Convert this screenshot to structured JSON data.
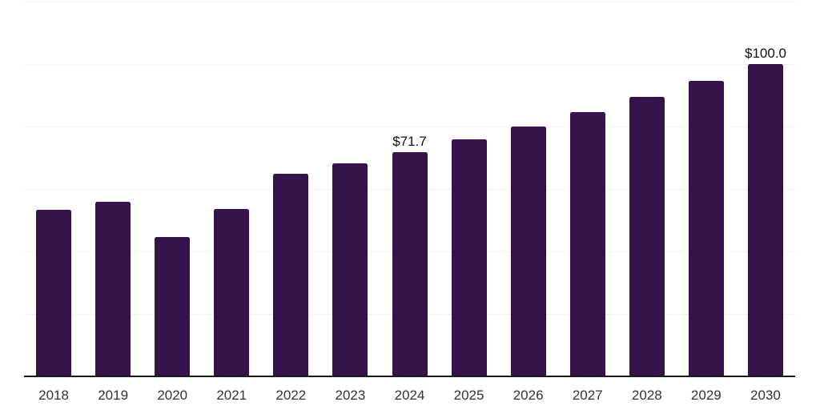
{
  "chart_data": {
    "type": "bar",
    "title": "",
    "xlabel": "",
    "ylabel": "",
    "categories": [
      "2018",
      "2019",
      "2020",
      "2021",
      "2022",
      "2023",
      "2024",
      "2025",
      "2026",
      "2027",
      "2028",
      "2029",
      "2030"
    ],
    "values": [
      53.3,
      55.8,
      44.6,
      53.5,
      64.8,
      68.1,
      71.7,
      75.8,
      79.9,
      84.5,
      89.4,
      94.5,
      100.0
    ],
    "data_labels": {
      "2024": "$71.7",
      "2030": "$100.0"
    },
    "ylim": [
      0,
      120
    ],
    "gridline_step": 20,
    "grid": "horizontal-only",
    "y_tick_labels": "none",
    "legend": "none",
    "colors": {
      "bar": "#331349",
      "axis_line": "#1a1a1a",
      "gridline": "#f1f1f4",
      "tick_label": "#333333",
      "data_label": "#111111",
      "background": "#ffffff"
    }
  }
}
